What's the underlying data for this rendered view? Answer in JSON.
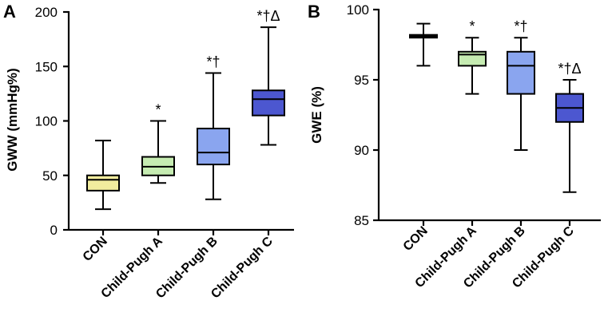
{
  "chart_data": [
    {
      "panel_label": "A",
      "type": "boxplot",
      "ylabel": "GWW (mmHg%)",
      "ylim": [
        0,
        200
      ],
      "yticks": [
        0,
        50,
        100,
        150,
        200
      ],
      "categories": [
        "CON",
        "Child-Pugh A",
        "Child-Pugh B",
        "Child-Pugh C"
      ],
      "colors": [
        "#f1ec9e",
        "#c6ecb2",
        "#8aa5ef",
        "#4c57d0"
      ],
      "boxes": [
        {
          "min": 19,
          "q1": 36,
          "median": 46,
          "q3": 50,
          "max": 82,
          "annotation": ""
        },
        {
          "min": 43,
          "q1": 50,
          "median": 58,
          "q3": 67,
          "max": 100,
          "annotation": "*"
        },
        {
          "min": 28,
          "q1": 60,
          "median": 71,
          "q3": 93,
          "max": 144,
          "annotation": "*†"
        },
        {
          "min": 78,
          "q1": 105,
          "median": 120,
          "q3": 128,
          "max": 186,
          "annotation": "*†Δ"
        }
      ]
    },
    {
      "panel_label": "B",
      "type": "boxplot",
      "ylabel": "GWE (%)",
      "ylim": [
        85,
        100
      ],
      "yticks": [
        85,
        90,
        95,
        100
      ],
      "categories": [
        "CON",
        "Child-Pugh A",
        "Child-Pugh B",
        "Child-Pugh C"
      ],
      "colors": [
        "#f1ec9e",
        "#c6ecb2",
        "#8aa5ef",
        "#4c57d0"
      ],
      "boxes": [
        {
          "min": 96,
          "q1": 98,
          "median": 98.1,
          "q3": 98.2,
          "max": 99,
          "annotation": ""
        },
        {
          "min": 94,
          "q1": 96,
          "median": 96.8,
          "q3": 97,
          "max": 98,
          "annotation": "*"
        },
        {
          "min": 90,
          "q1": 94,
          "median": 96,
          "q3": 97,
          "max": 98,
          "annotation": "*†"
        },
        {
          "min": 87,
          "q1": 92,
          "median": 93,
          "q3": 94,
          "max": 95,
          "annotation": "*†Δ"
        }
      ]
    }
  ]
}
